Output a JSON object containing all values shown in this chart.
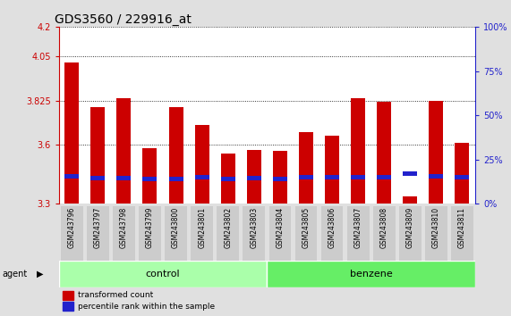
{
  "title": "GDS3560 / 229916_at",
  "samples": [
    "GSM243796",
    "GSM243797",
    "GSM243798",
    "GSM243799",
    "GSM243800",
    "GSM243801",
    "GSM243802",
    "GSM243803",
    "GSM243804",
    "GSM243805",
    "GSM243806",
    "GSM243807",
    "GSM243808",
    "GSM243809",
    "GSM243810",
    "GSM243811"
  ],
  "red_values": [
    4.02,
    3.79,
    3.835,
    3.585,
    3.79,
    3.7,
    3.555,
    3.575,
    3.57,
    3.665,
    3.645,
    3.835,
    3.82,
    3.34,
    3.825,
    3.61
  ],
  "blue_values": [
    3.44,
    3.43,
    3.43,
    3.425,
    3.425,
    3.435,
    3.425,
    3.43,
    3.425,
    3.435,
    3.435,
    3.435,
    3.435,
    3.455,
    3.44,
    3.435
  ],
  "ylim": [
    3.3,
    4.2
  ],
  "yticks_left": [
    3.3,
    3.6,
    3.825,
    4.05,
    4.2
  ],
  "ytick_labels_left": [
    "3.3",
    "3.6",
    "3.825",
    "4.05",
    "4.2"
  ],
  "yticks_right_vals": [
    0,
    25,
    50,
    75,
    100
  ],
  "control_samples": 8,
  "benzene_samples": 8,
  "bar_width": 0.55,
  "red_color": "#cc0000",
  "blue_color": "#2222cc",
  "bar_bottom": 3.3,
  "control_color": "#aaffaa",
  "benzene_color": "#66ee66",
  "xticklabel_bg": "#cccccc",
  "plot_bg": "#ffffff",
  "fig_bg": "#e0e0e0",
  "agent_label": "agent",
  "control_label": "control",
  "benzene_label": "benzene",
  "legend_red_label": "transformed count",
  "legend_blue_label": "percentile rank within the sample",
  "title_fontsize": 10,
  "tick_fontsize": 7,
  "label_fontsize": 8,
  "blue_bar_height": 0.022
}
